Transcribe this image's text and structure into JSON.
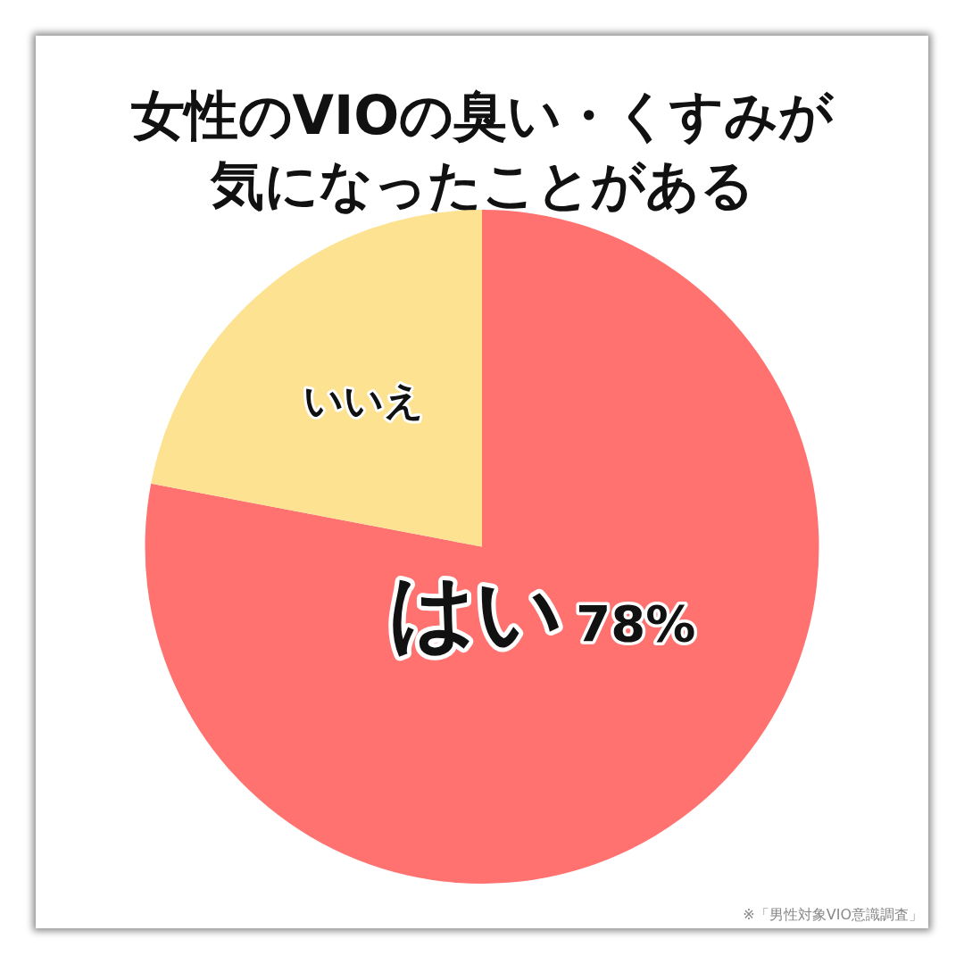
{
  "chart_data": {
    "type": "pie",
    "title": "女性のVIOの臭い・くすみが気になったことがある",
    "categories": [
      "はい",
      "いいえ"
    ],
    "values": [
      78,
      22
    ],
    "value_labels": [
      "78%",
      null
    ],
    "colors": [
      "#ff7270",
      "#fde292"
    ],
    "legend": false,
    "annotations": [
      "※「男性対象VIO意識調査」"
    ]
  }
}
